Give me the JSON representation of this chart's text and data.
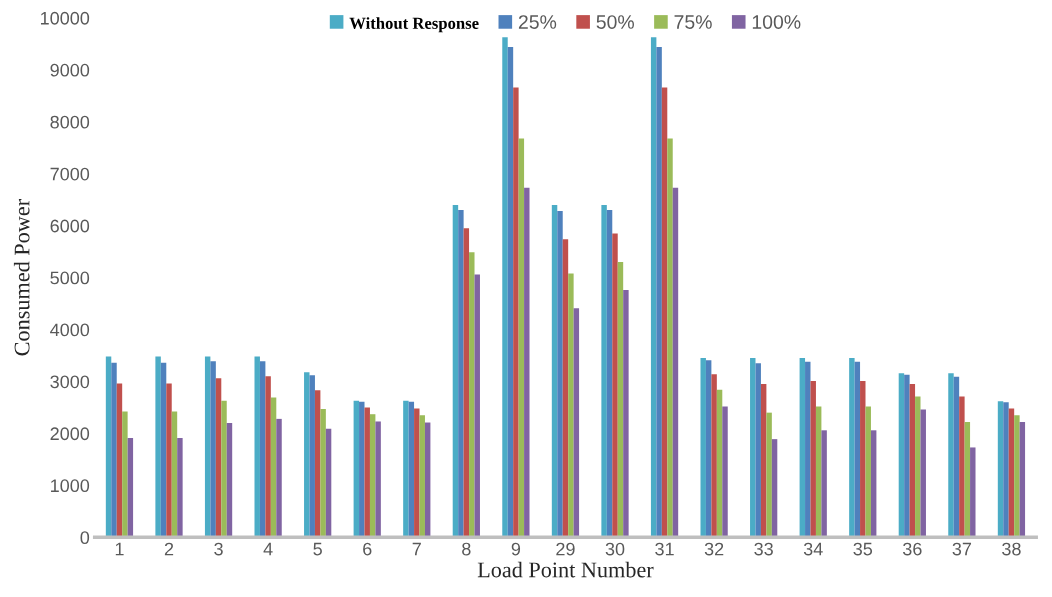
{
  "chart_data": {
    "type": "bar",
    "xlabel": "Load Point Number",
    "ylabel": "Consumed Power",
    "categories": [
      "1",
      "2",
      "3",
      "4",
      "5",
      "6",
      "7",
      "8",
      "9",
      "29",
      "30",
      "31",
      "32",
      "33",
      "34",
      "35",
      "36",
      "37",
      "38"
    ],
    "series": [
      {
        "name": "Without Response",
        "color": "#4bacc6",
        "values": [
          3480,
          3480,
          3480,
          3480,
          3180,
          2630,
          2630,
          6400,
          9630,
          6400,
          6400,
          9630,
          3450,
          3450,
          3450,
          3450,
          3160,
          3160,
          2620
        ]
      },
      {
        "name": "25%",
        "color": "#4f81bd",
        "values": [
          3360,
          3360,
          3390,
          3390,
          3120,
          2610,
          2610,
          6300,
          9440,
          6280,
          6300,
          9440,
          3410,
          3350,
          3380,
          3380,
          3130,
          3090,
          2600
        ]
      },
      {
        "name": "50%",
        "color": "#c0504d",
        "values": [
          2960,
          2960,
          3060,
          3100,
          2830,
          2500,
          2480,
          5950,
          8660,
          5740,
          5850,
          8660,
          3140,
          2950,
          3010,
          3010,
          2950,
          2710,
          2480
        ]
      },
      {
        "name": "75%",
        "color": "#9bbb59",
        "values": [
          2420,
          2420,
          2630,
          2690,
          2470,
          2370,
          2350,
          5490,
          7680,
          5080,
          5300,
          7680,
          2840,
          2400,
          2520,
          2520,
          2710,
          2220,
          2350
        ]
      },
      {
        "name": "100%",
        "color": "#8064a2",
        "values": [
          1910,
          1910,
          2200,
          2280,
          2090,
          2230,
          2210,
          5060,
          6730,
          4410,
          4760,
          6730,
          2520,
          1890,
          2060,
          2060,
          2460,
          1730,
          2220
        ]
      }
    ],
    "ylim": [
      0,
      10000
    ],
    "yticks": [
      0,
      1000,
      2000,
      3000,
      4000,
      5000,
      6000,
      7000,
      8000,
      9000,
      10000
    ],
    "grid": false,
    "legend": "top"
  }
}
